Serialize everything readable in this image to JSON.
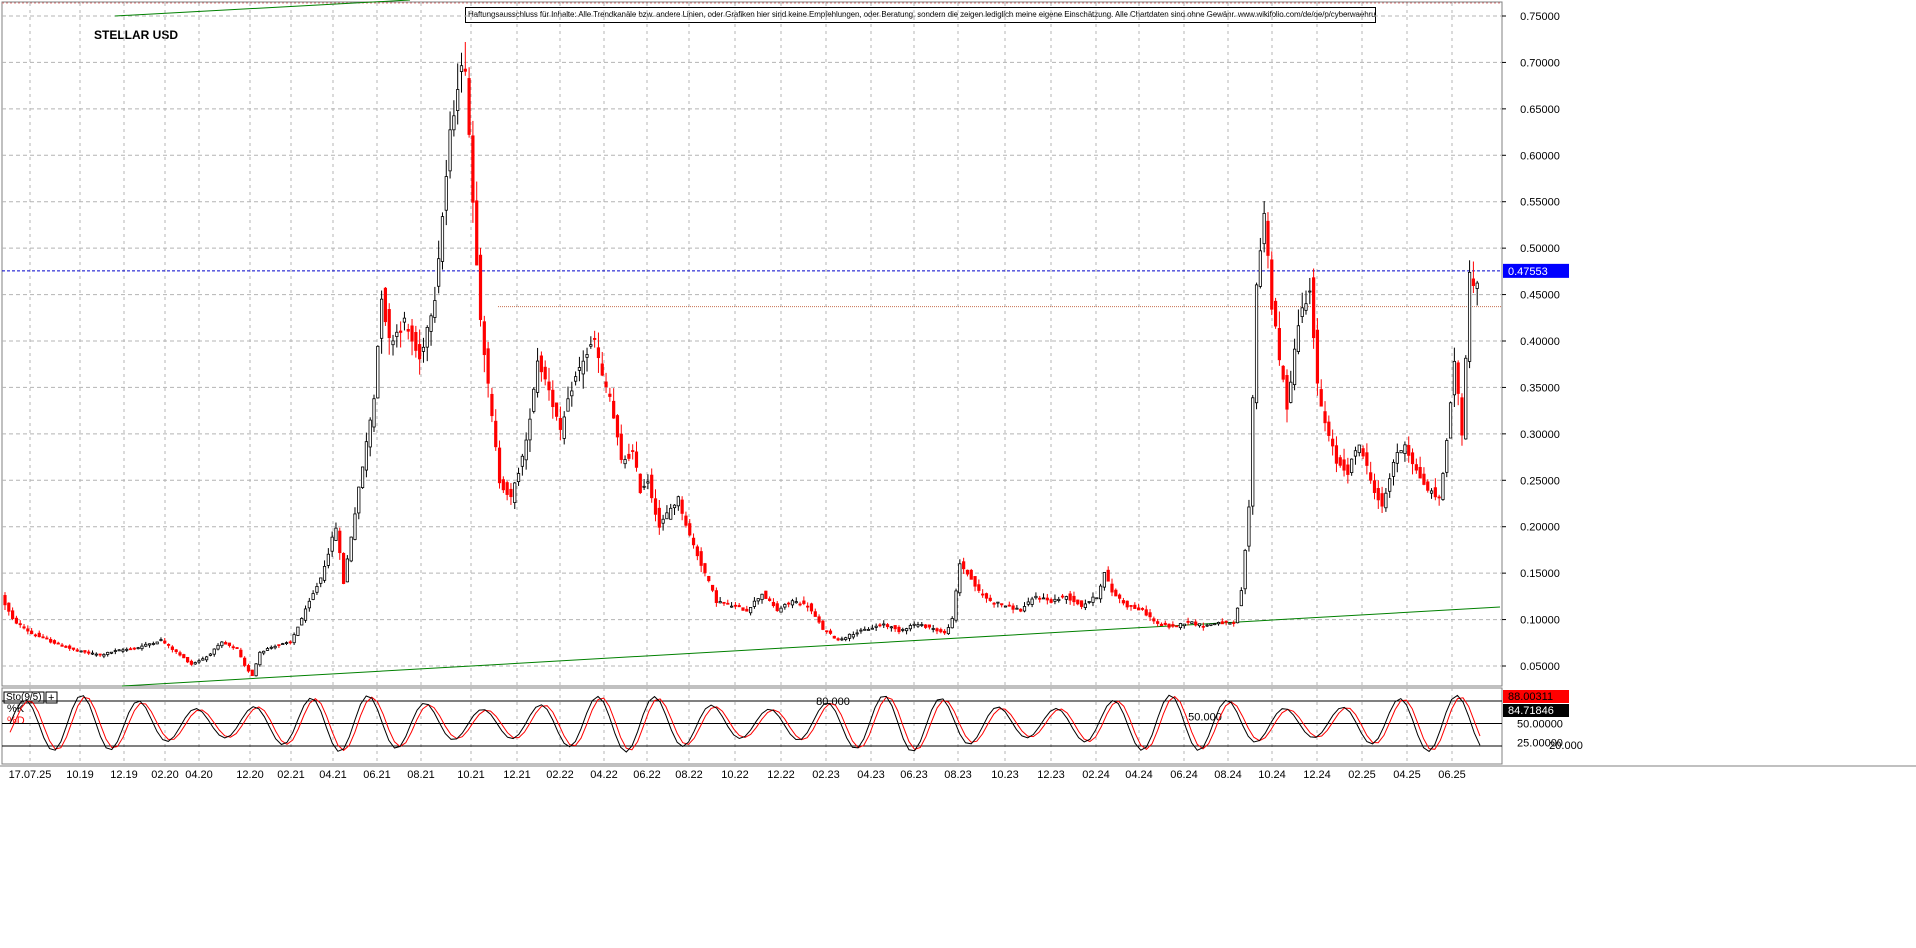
{
  "header": {
    "title": "STELLAR USD",
    "disclaimer": "Haftungsausschluss für Inhalte: Alle Trendkanäle bzw. andere Linien, oder Grafiken hier sind keine Empfehlungen, oder Beratung, sondern die zeigen lediglich meine eigene Einschätzung. Alle Chartdaten sind ohne Gewähr.  www.wikifolio.com/de/de/p/cyberwaehrungen"
  },
  "colors": {
    "up_candle": "#000000",
    "down_candle": "#ff0000",
    "grid": "#b4b4b4",
    "trendline": "#008000",
    "current_price_line": "#0000cc",
    "current_price_badge": "#0000ff",
    "stoch_k": "#000000",
    "stoch_d": "#ff0000",
    "stoch_k_badge": "#ff0000",
    "stoch_d_badge": "#000000",
    "resistance_line": "#c87050"
  },
  "chart_data": [
    {
      "type": "candlestick",
      "title": "STELLAR USD",
      "current_price": "0.47553",
      "ylim": [
        0.03,
        0.765
      ],
      "y_ticks": [
        "0.05000",
        "0.10000",
        "0.15000",
        "0.20000",
        "0.25000",
        "0.30000",
        "0.35000",
        "0.40000",
        "0.45000",
        "0.50000",
        "0.55000",
        "0.60000",
        "0.65000",
        "0.70000",
        "0.75000"
      ],
      "x_ticks": [
        "17.07.25",
        "10.19",
        "12.19",
        "02.20",
        "04.20",
        "12.20",
        "02.21",
        "04.21",
        "06.21",
        "08.21",
        "10.21",
        "12.21",
        "02.22",
        "04.22",
        "06.22",
        "08.22",
        "10.22",
        "12.22",
        "02.23",
        "04.23",
        "06.23",
        "08.23",
        "10.23",
        "12.23",
        "02.24",
        "04.24",
        "06.24",
        "08.24",
        "10.24",
        "12.24",
        "02.25",
        "04.25",
        "06.25"
      ],
      "grid": true,
      "price_path": [
        [
          0,
          0.125
        ],
        [
          3,
          0.1
        ],
        [
          8,
          0.085
        ],
        [
          14,
          0.075
        ],
        [
          20,
          0.066
        ],
        [
          26,
          0.062
        ],
        [
          30,
          0.066
        ],
        [
          36,
          0.07
        ],
        [
          42,
          0.078
        ],
        [
          46,
          0.065
        ],
        [
          50,
          0.052
        ],
        [
          54,
          0.06
        ],
        [
          58,
          0.075
        ],
        [
          62,
          0.068
        ],
        [
          64,
          0.05
        ],
        [
          66,
          0.04
        ],
        [
          68,
          0.065
        ],
        [
          72,
          0.072
        ],
        [
          76,
          0.075
        ],
        [
          80,
          0.11
        ],
        [
          84,
          0.145
        ],
        [
          88,
          0.2
        ],
        [
          90,
          0.14
        ],
        [
          92,
          0.19
        ],
        [
          96,
          0.29
        ],
        [
          98,
          0.34
        ],
        [
          100,
          0.45
        ],
        [
          102,
          0.4
        ],
        [
          106,
          0.42
        ],
        [
          110,
          0.38
        ],
        [
          114,
          0.45
        ],
        [
          118,
          0.62
        ],
        [
          120,
          0.68
        ],
        [
          122,
          0.7
        ],
        [
          124,
          0.55
        ],
        [
          126,
          0.43
        ],
        [
          128,
          0.35
        ],
        [
          131,
          0.25
        ],
        [
          134,
          0.23
        ],
        [
          138,
          0.29
        ],
        [
          141,
          0.38
        ],
        [
          144,
          0.35
        ],
        [
          147,
          0.3
        ],
        [
          150,
          0.35
        ],
        [
          153,
          0.38
        ],
        [
          156,
          0.4
        ],
        [
          158,
          0.36
        ],
        [
          160,
          0.34
        ],
        [
          163,
          0.27
        ],
        [
          166,
          0.28
        ],
        [
          168,
          0.24
        ],
        [
          170,
          0.25
        ],
        [
          173,
          0.2
        ],
        [
          176,
          0.22
        ],
        [
          178,
          0.23
        ],
        [
          181,
          0.19
        ],
        [
          185,
          0.15
        ],
        [
          188,
          0.12
        ],
        [
          192,
          0.115
        ],
        [
          196,
          0.11
        ],
        [
          200,
          0.128
        ],
        [
          204,
          0.11
        ],
        [
          208,
          0.12
        ],
        [
          212,
          0.115
        ],
        [
          216,
          0.09
        ],
        [
          220,
          0.078
        ],
        [
          224,
          0.085
        ],
        [
          228,
          0.09
        ],
        [
          232,
          0.095
        ],
        [
          236,
          0.088
        ],
        [
          240,
          0.095
        ],
        [
          244,
          0.092
        ],
        [
          248,
          0.085
        ],
        [
          250,
          0.1
        ],
        [
          252,
          0.16
        ],
        [
          254,
          0.15
        ],
        [
          257,
          0.13
        ],
        [
          260,
          0.12
        ],
        [
          264,
          0.115
        ],
        [
          268,
          0.11
        ],
        [
          272,
          0.125
        ],
        [
          276,
          0.12
        ],
        [
          280,
          0.125
        ],
        [
          284,
          0.115
        ],
        [
          288,
          0.125
        ],
        [
          290,
          0.15
        ],
        [
          292,
          0.13
        ],
        [
          296,
          0.115
        ],
        [
          300,
          0.11
        ],
        [
          304,
          0.095
        ],
        [
          308,
          0.092
        ],
        [
          312,
          0.098
        ],
        [
          316,
          0.093
        ],
        [
          320,
          0.097
        ],
        [
          324,
          0.095
        ],
        [
          326,
          0.13
        ],
        [
          328,
          0.22
        ],
        [
          330,
          0.46
        ],
        [
          332,
          0.54
        ],
        [
          334,
          0.44
        ],
        [
          336,
          0.38
        ],
        [
          338,
          0.33
        ],
        [
          341,
          0.42
        ],
        [
          344,
          0.46
        ],
        [
          346,
          0.35
        ],
        [
          348,
          0.31
        ],
        [
          351,
          0.27
        ],
        [
          354,
          0.26
        ],
        [
          357,
          0.29
        ],
        [
          360,
          0.25
        ],
        [
          363,
          0.22
        ],
        [
          366,
          0.27
        ],
        [
          369,
          0.29
        ],
        [
          372,
          0.26
        ],
        [
          375,
          0.24
        ],
        [
          378,
          0.23
        ],
        [
          380,
          0.29
        ],
        [
          382,
          0.38
        ],
        [
          384,
          0.3
        ],
        [
          386,
          0.47
        ],
        [
          388,
          0.46
        ]
      ]
    },
    {
      "type": "line",
      "title": "Sto(9/5)",
      "series_k_label": "%K",
      "series_d_label": "%D",
      "k_value": "88.00311",
      "d_value": "84.71846",
      "ylim": [
        0,
        100
      ],
      "y_ticks": [
        "50.00000",
        "25.00000"
      ],
      "reference_levels": [
        {
          "label": "80.000",
          "value": 80
        },
        {
          "label": "50.000",
          "value": 50
        },
        {
          "label": "20.000",
          "value": 20
        }
      ]
    }
  ]
}
